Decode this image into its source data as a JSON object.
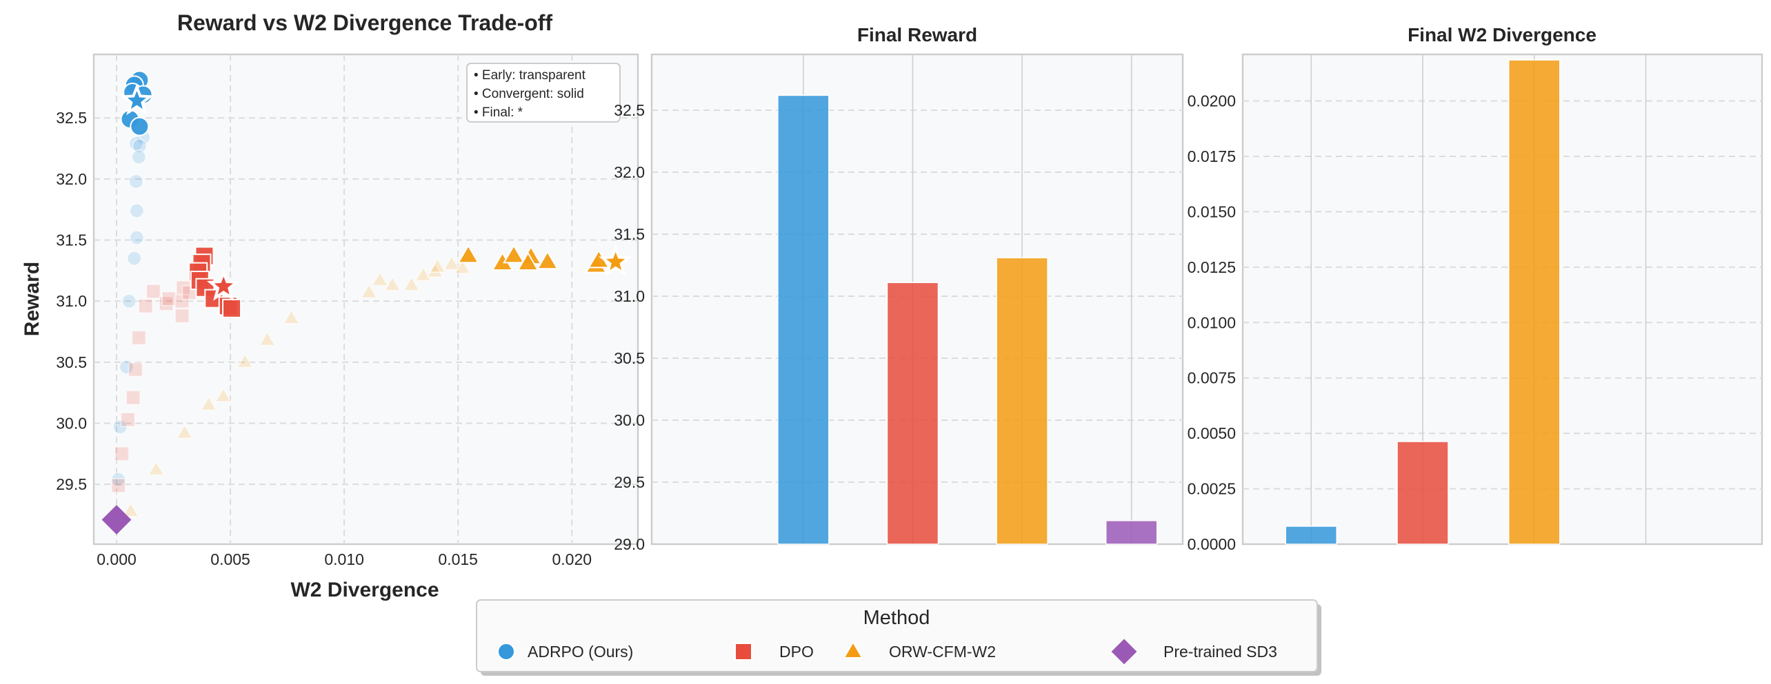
{
  "colors": {
    "ADRPO (Ours)": "#3498db",
    "DPO": "#e74c3c",
    "ORW-CFM-W2": "#f39c12",
    "Pre-trained SD3": "#9b59b6"
  },
  "chart_data": [
    {
      "type": "scatter",
      "title": "Reward vs W2 Divergence Trade-off",
      "xlabel": "W2 Divergence",
      "ylabel": "Reward",
      "xlim": [
        -0.001,
        0.0229
      ],
      "ylim": [
        29.01,
        33.02
      ],
      "xticks": [
        "0.000",
        "0.005",
        "0.010",
        "0.015",
        "0.020"
      ],
      "yticks": [
        "29.5",
        "30.0",
        "30.5",
        "31.0",
        "31.5",
        "32.0",
        "32.5"
      ],
      "grid": true,
      "annotation": [
        "• Early: transparent",
        "• Convergent: solid",
        "• Final: *"
      ],
      "annotation_placement": "top-right",
      "series": [
        {
          "name": "ADRPO (Ours)",
          "marker": "circle",
          "early": [
            [
              0.00117,
              32.34
            ],
            [
              0.00086,
              32.29
            ],
            [
              0.00101,
              32.27
            ],
            [
              0.00098,
              32.18
            ],
            [
              0.00086,
              31.98
            ],
            [
              0.00089,
              31.74
            ],
            [
              0.00089,
              31.52
            ],
            [
              0.00078,
              31.35
            ],
            [
              0.00055,
              31.0
            ],
            [
              0.00044,
              30.46
            ],
            [
              0.00016,
              29.97
            ],
            [
              8e-05,
              29.54
            ]
          ],
          "convergent": [
            [
              0.00101,
              32.81
            ],
            [
              0.00078,
              32.77
            ],
            [
              0.0007,
              32.71
            ],
            [
              0.00117,
              32.69
            ],
            [
              0.00059,
              32.49
            ],
            [
              0.00101,
              32.43
            ]
          ],
          "final": [
            0.00089,
            32.64
          ]
        },
        {
          "name": "DPO",
          "marker": "square",
          "early": [
            [
              0.00162,
              31.08
            ],
            [
              0.00128,
              30.96
            ],
            [
              0.00218,
              30.98
            ],
            [
              0.0023,
              31.02
            ],
            [
              0.00288,
              31.0
            ],
            [
              0.00293,
              31.11
            ],
            [
              0.00319,
              31.07
            ],
            [
              0.00288,
              30.88
            ],
            [
              0.00098,
              30.7
            ],
            [
              0.00083,
              30.44
            ],
            [
              0.00073,
              30.21
            ],
            [
              0.0005,
              30.03
            ],
            [
              0.00023,
              29.75
            ],
            [
              8e-05,
              29.49
            ]
          ],
          "convergent": [
            [
              0.00386,
              31.37
            ],
            [
              0.00374,
              31.31
            ],
            [
              0.00358,
              31.24
            ],
            [
              0.00366,
              31.17
            ],
            [
              0.00389,
              31.11
            ],
            [
              0.00428,
              31.02
            ],
            [
              0.0049,
              30.96
            ],
            [
              0.00506,
              30.94
            ]
          ],
          "final": [
            0.0047,
            31.12
          ]
        },
        {
          "name": "ORW-CFM-W2",
          "marker": "triangle",
          "early": [
            [
              0.01109,
              31.07
            ],
            [
              0.01157,
              31.17
            ],
            [
              0.01212,
              31.13
            ],
            [
              0.01296,
              31.13
            ],
            [
              0.01347,
              31.21
            ],
            [
              0.01399,
              31.24
            ],
            [
              0.0141,
              31.28
            ],
            [
              0.01472,
              31.3
            ],
            [
              0.01519,
              31.27
            ],
            [
              0.00768,
              30.86
            ],
            [
              0.00662,
              30.68
            ],
            [
              0.00564,
              30.5
            ],
            [
              0.00469,
              30.22
            ],
            [
              0.00405,
              30.15
            ],
            [
              0.00299,
              29.92
            ],
            [
              0.00174,
              29.62
            ],
            [
              0.00062,
              29.28
            ]
          ],
          "convergent": [
            [
              0.01545,
              31.37
            ],
            [
              0.01695,
              31.31
            ],
            [
              0.01745,
              31.37
            ],
            [
              0.0182,
              31.36
            ],
            [
              0.01807,
              31.31
            ],
            [
              0.01893,
              31.32
            ],
            [
              0.02106,
              31.29
            ],
            [
              0.02118,
              31.33
            ]
          ],
          "final": [
            0.02192,
            31.32
          ]
        },
        {
          "name": "Pre-trained SD3",
          "marker": "diamond",
          "point": [
            0.0,
            29.21
          ]
        }
      ]
    },
    {
      "type": "bar",
      "title": "Final Reward",
      "categories": [
        "ADRPO (Ours)",
        "DPO",
        "ORW-CFM-W2",
        "Pre-trained SD3"
      ],
      "values": [
        32.62,
        31.11,
        31.31,
        29.19
      ],
      "ylim": [
        29.0,
        32.95
      ],
      "yticks": [
        "29.0",
        "29.5",
        "30.0",
        "30.5",
        "31.0",
        "31.5",
        "32.0",
        "32.5"
      ],
      "grid": true
    },
    {
      "type": "bar",
      "title": "Final W2 Divergence",
      "categories": [
        "ADRPO (Ours)",
        "DPO",
        "ORW-CFM-W2",
        "Pre-trained SD3"
      ],
      "values": [
        0.00081,
        0.00463,
        0.02185,
        0.0
      ],
      "ylim": [
        0.0,
        0.0221
      ],
      "yticks": [
        "0.0000",
        "0.0025",
        "0.0050",
        "0.0075",
        "0.0100",
        "0.0125",
        "0.0150",
        "0.0175",
        "0.0200"
      ],
      "grid": true
    }
  ],
  "legend": {
    "title": "Method",
    "placement": "bottom-center",
    "items": [
      {
        "label": "ADRPO (Ours)",
        "marker": "circle"
      },
      {
        "label": "DPO",
        "marker": "square"
      },
      {
        "label": "ORW-CFM-W2",
        "marker": "triangle"
      },
      {
        "label": "Pre-trained SD3",
        "marker": "diamond"
      }
    ]
  }
}
